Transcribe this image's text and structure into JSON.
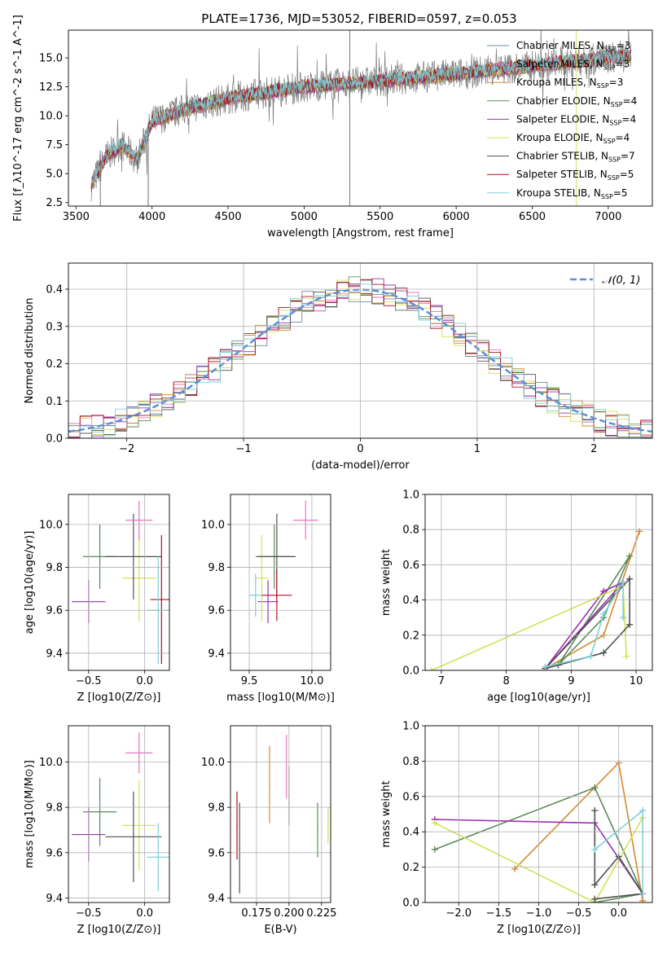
{
  "figure": {
    "title": "PLATE=1736, MJD=53052, FIBERID=0597, z=0.053"
  },
  "series_styles": [
    {
      "name": "Chabrier MILES",
      "nssp": "3",
      "color": "#6b8e9b"
    },
    {
      "name": "Salpeter MILES",
      "nssp": "3",
      "color": "#e377c2"
    },
    {
      "name": "Kroupa MILES",
      "nssp": "3",
      "color": "#d68a2e"
    },
    {
      "name": "Chabrier ELODIE",
      "nssp": "4",
      "color": "#5a8a5a"
    },
    {
      "name": "Salpeter ELODIE",
      "nssp": "4",
      "color": "#9b30b0"
    },
    {
      "name": "Kroupa ELODIE",
      "nssp": "4",
      "color": "#d4e157"
    },
    {
      "name": "Chabrier STELIB",
      "nssp": "7",
      "color": "#505050"
    },
    {
      "name": "Salpeter STELIB",
      "nssp": "5",
      "color": "#b01020"
    },
    {
      "name": "Kroupa STELIB",
      "nssp": "5",
      "color": "#7fd0d8"
    }
  ],
  "chart_data": [
    {
      "id": "spectrum",
      "type": "line",
      "title": "PLATE=1736, MJD=53052, FIBERID=0597, z=0.053",
      "xlabel": "wavelength [Angstrom, rest frame]",
      "ylabel": "Flux [f_λ10^-17 erg cm^-2 s^-1 A^-1]",
      "xlim": [
        3450,
        7290
      ],
      "ylim": [
        2.2,
        17.4
      ],
      "xticks": [
        "3500",
        "4000",
        "4500",
        "5000",
        "5500",
        "6000",
        "6500",
        "7000"
      ],
      "yticks": [
        "2.5",
        "5.0",
        "7.5",
        "10.0",
        "12.5",
        "15.0"
      ],
      "continuum_knots": [
        [
          3600,
          4.0
        ],
        [
          3700,
          6.5
        ],
        [
          3800,
          7.5
        ],
        [
          3900,
          6.2
        ],
        [
          4000,
          9.5
        ],
        [
          4200,
          10.5
        ],
        [
          4500,
          11.5
        ],
        [
          5000,
          12.5
        ],
        [
          5500,
          13.0
        ],
        [
          6000,
          13.6
        ],
        [
          6500,
          14.3
        ],
        [
          7000,
          15.0
        ],
        [
          7150,
          15.2
        ]
      ],
      "legend": [
        "Chabrier MILES, N_SSP=3",
        "Salpeter MILES, N_SSP=3",
        "Kroupa MILES, N_SSP=3",
        "Chabrier ELODIE, N_SSP=4",
        "Salpeter ELODIE, N_SSP=4",
        "Kroupa ELODIE, N_SSP=4",
        "Chabrier STELIB, N_SSP=7",
        "Salpeter STELIB, N_SSP=5",
        "Kroupa STELIB, N_SSP=5"
      ],
      "legend_position": "right"
    },
    {
      "id": "residuals",
      "type": "line",
      "xlabel": "(data-model)/error",
      "ylabel": "Normed distribution",
      "xlim": [
        -2.5,
        2.5
      ],
      "ylim": [
        0.0,
        0.47
      ],
      "xticks": [
        "−2",
        "−1",
        "0",
        "1",
        "2"
      ],
      "yticks": [
        "0.0",
        "0.1",
        "0.2",
        "0.3",
        "0.4"
      ],
      "reference_curve": "𝒩(0, 1)",
      "legend_position": "top-right",
      "grid": true
    },
    {
      "id": "age-vs-Z",
      "type": "scatter",
      "xlabel": "Z [log10(Z/Z⊙)]",
      "ylabel": "age  [log10(age/yr)]",
      "xlim": [
        -0.68,
        0.22
      ],
      "ylim": [
        9.32,
        10.14
      ],
      "xticks": [
        "−0.5",
        "0.0"
      ],
      "yticks": [
        "9.4",
        "9.6",
        "9.8",
        "10.0"
      ],
      "points": [
        {
          "x": -0.4,
          "y": 9.85,
          "xerr": 0.15,
          "yerr": 0.15,
          "c": 3
        },
        {
          "x": -0.5,
          "y": 9.64,
          "xerr": 0.15,
          "yerr": 0.1,
          "c": 4
        },
        {
          "x": -0.05,
          "y": 9.75,
          "xerr": 0.15,
          "yerr": 0.2,
          "c": 5
        },
        {
          "x": -0.1,
          "y": 9.85,
          "xerr": 0.25,
          "yerr": 0.2,
          "c": 6
        },
        {
          "x": -0.05,
          "y": 10.02,
          "xerr": 0.12,
          "yerr": 0.09,
          "c": 1
        },
        {
          "x": 0.15,
          "y": 9.65,
          "xerr": 0.1,
          "yerr": 0.3,
          "c": 7
        },
        {
          "x": 0.12,
          "y": 9.6,
          "xerr": 0.1,
          "yerr": 0.25,
          "c": 8
        }
      ]
    },
    {
      "id": "age-vs-mass",
      "type": "scatter",
      "xlabel": "mass [log10(M/M⊙)]",
      "ylabel": "",
      "xlim": [
        9.35,
        10.15
      ],
      "ylim": [
        9.32,
        10.14
      ],
      "xticks": [
        "9.5",
        "10.0"
      ],
      "yticks": [
        "9.4",
        "9.6",
        "9.8",
        "10.0"
      ],
      "points": [
        {
          "x": 9.7,
          "y": 9.85,
          "xerr": 0.15,
          "yerr": 0.15,
          "c": 3
        },
        {
          "x": 9.65,
          "y": 9.64,
          "xerr": 0.08,
          "yerr": 0.1,
          "c": 4
        },
        {
          "x": 9.6,
          "y": 9.75,
          "xerr": 0.05,
          "yerr": 0.2,
          "c": 5
        },
        {
          "x": 9.72,
          "y": 9.85,
          "xerr": 0.15,
          "yerr": 0.2,
          "c": 6
        },
        {
          "x": 9.95,
          "y": 10.02,
          "xerr": 0.1,
          "yerr": 0.09,
          "c": 1
        },
        {
          "x": 9.72,
          "y": 9.67,
          "xerr": 0.12,
          "yerr": 0.12,
          "c": 7
        },
        {
          "x": 9.55,
          "y": 9.67,
          "xerr": 0.05,
          "yerr": 0.1,
          "c": 8
        }
      ]
    },
    {
      "id": "weight-vs-age",
      "type": "line",
      "xlabel": "age  [log10(age/yr)]",
      "ylabel": "mass weight",
      "xlim": [
        6.75,
        10.25
      ],
      "ylim": [
        0.0,
        1.0
      ],
      "xticks": [
        "7",
        "8",
        "9",
        "10"
      ],
      "yticks": [
        "0.0",
        "0.2",
        "0.4",
        "0.6",
        "0.8",
        "1.0"
      ],
      "grid": true,
      "series": [
        {
          "c": 2,
          "points": [
            [
              8.6,
              0.01
            ],
            [
              9.5,
              0.2
            ],
            [
              10.05,
              0.79
            ]
          ]
        },
        {
          "c": 3,
          "points": [
            [
              8.8,
              0.03
            ],
            [
              9.5,
              0.3
            ],
            [
              9.9,
              0.65
            ],
            [
              8.8,
              0.03
            ]
          ]
        },
        {
          "c": 4,
          "points": [
            [
              8.6,
              0.01
            ],
            [
              9.5,
              0.45
            ],
            [
              9.8,
              0.5
            ],
            [
              8.6,
              0.01
            ]
          ]
        },
        {
          "c": 5,
          "points": [
            [
              6.85,
              0.0
            ],
            [
              9.8,
              0.48
            ],
            [
              9.85,
              0.08
            ]
          ]
        },
        {
          "c": 6,
          "points": [
            [
              8.6,
              0.01
            ],
            [
              9.5,
              0.1
            ],
            [
              9.9,
              0.26
            ],
            [
              9.9,
              0.52
            ],
            [
              8.6,
              0.01
            ]
          ]
        },
        {
          "c": 8,
          "points": [
            [
              8.6,
              0.02
            ],
            [
              9.3,
              0.08
            ],
            [
              9.5,
              0.32
            ],
            [
              9.8,
              0.5
            ],
            [
              9.8,
              0.3
            ]
          ]
        }
      ]
    },
    {
      "id": "mass-vs-Z",
      "type": "scatter",
      "xlabel": "Z [log10(Z/Z⊙)]",
      "ylabel": "mass [log10(M/M⊙)]",
      "xlim": [
        -0.68,
        0.22
      ],
      "ylim": [
        9.38,
        10.16
      ],
      "xticks": [
        "−0.5",
        "0.0"
      ],
      "yticks": [
        "9.4",
        "9.6",
        "9.8",
        "10.0"
      ],
      "points": [
        {
          "x": -0.4,
          "y": 9.78,
          "xerr": 0.15,
          "yerr": 0.15,
          "c": 3
        },
        {
          "x": -0.5,
          "y": 9.68,
          "xerr": 0.15,
          "yerr": 0.12,
          "c": 4
        },
        {
          "x": -0.05,
          "y": 9.72,
          "xerr": 0.15,
          "yerr": 0.2,
          "c": 5
        },
        {
          "x": -0.1,
          "y": 9.67,
          "xerr": 0.25,
          "yerr": 0.2,
          "c": 6
        },
        {
          "x": -0.05,
          "y": 10.04,
          "xerr": 0.12,
          "yerr": 0.09,
          "c": 1
        },
        {
          "x": 0.12,
          "y": 9.58,
          "xerr": 0.1,
          "yerr": 0.15,
          "c": 8
        }
      ]
    },
    {
      "id": "mass-vs-ebv",
      "type": "scatter",
      "xlabel": "E(B-V)",
      "ylabel": "",
      "xlim": [
        0.155,
        0.232
      ],
      "ylim": [
        9.38,
        10.16
      ],
      "xticks": [
        "0.175",
        "0.200",
        "0.225"
      ],
      "yticks": [
        "9.4",
        "9.6",
        "9.8",
        "10.0"
      ],
      "points": [
        {
          "x": 0.16,
          "y": 9.72,
          "yerr": 0.15,
          "c": 7
        },
        {
          "x": 0.162,
          "y": 9.62,
          "yerr": 0.2,
          "c": 6
        },
        {
          "x": 0.185,
          "y": 9.9,
          "yerr": 0.17,
          "c": 2
        },
        {
          "x": 0.198,
          "y": 9.98,
          "yerr": 0.14,
          "c": 1
        },
        {
          "x": 0.2,
          "y": 9.85,
          "yerr": 0.13,
          "c": 0
        },
        {
          "x": 0.222,
          "y": 9.7,
          "yerr": 0.12,
          "c": 3
        },
        {
          "x": 0.23,
          "y": 9.72,
          "yerr": 0.08,
          "c": 5
        }
      ]
    },
    {
      "id": "weight-vs-Z",
      "type": "line",
      "xlabel": "Z [log10(Z/Z⊙)]",
      "ylabel": "mass weight",
      "xlim": [
        -2.42,
        0.42
      ],
      "ylim": [
        0.0,
        1.0
      ],
      "xticks": [
        "−2.0",
        "−1.5",
        "−1.0",
        "−0.5",
        "0.0"
      ],
      "yticks": [
        "0.0",
        "0.2",
        "0.4",
        "0.6",
        "0.8",
        "1.0"
      ],
      "grid": true,
      "series": [
        {
          "c": 2,
          "points": [
            [
              -1.3,
              0.19
            ],
            [
              0.0,
              0.79
            ],
            [
              0.3,
              0.01
            ]
          ]
        },
        {
          "c": 3,
          "points": [
            [
              -2.3,
              0.3
            ],
            [
              -0.3,
              0.65
            ],
            [
              0.3,
              0.05
            ],
            [
              -0.3,
              0.0
            ]
          ]
        },
        {
          "c": 4,
          "points": [
            [
              -2.3,
              0.47
            ],
            [
              -0.3,
              0.45
            ],
            [
              0.3,
              0.05
            ]
          ]
        },
        {
          "c": 5,
          "points": [
            [
              -2.3,
              0.45
            ],
            [
              -0.3,
              0.0
            ],
            [
              0.3,
              0.48
            ]
          ]
        },
        {
          "c": 6,
          "points": [
            [
              -0.3,
              0.52
            ],
            [
              -0.3,
              0.1
            ],
            [
              0.0,
              0.26
            ],
            [
              0.3,
              0.05
            ],
            [
              -0.3,
              0.02
            ]
          ]
        },
        {
          "c": 8,
          "points": [
            [
              -0.3,
              0.3
            ],
            [
              0.3,
              0.52
            ],
            [
              0.3,
              0.05
            ]
          ]
        }
      ]
    }
  ]
}
